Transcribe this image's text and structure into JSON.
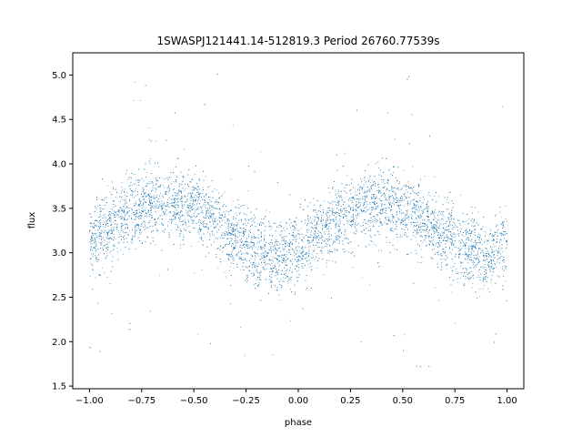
{
  "chart_data": {
    "type": "scatter",
    "title": "1SWASPJ121441.14-512819.3 Period 26760.77539s",
    "xlabel": "phase",
    "ylabel": "flux",
    "xlim": [
      -1.08,
      1.08
    ],
    "ylim": [
      1.47,
      5.25
    ],
    "xticks": [
      -1.0,
      -0.75,
      -0.5,
      -0.25,
      0.0,
      0.25,
      0.5,
      0.75,
      1.0
    ],
    "xtick_labels": [
      "−1.00",
      "−0.75",
      "−0.50",
      "−0.25",
      "0.00",
      "0.25",
      "0.50",
      "0.75",
      "1.00"
    ],
    "yticks": [
      1.5,
      2.0,
      2.5,
      3.0,
      3.5,
      4.0,
      4.5,
      5.0
    ],
    "ytick_labels": [
      "1.5",
      "2.0",
      "2.5",
      "3.0",
      "3.5",
      "4.0",
      "4.5",
      "5.0"
    ],
    "grid": false,
    "legend": "none",
    "series": [
      {
        "color": "#1f77b4",
        "marker": "point",
        "description_of_shape": "folded light curve, sinusoidal with period 1.0 in phase",
        "x": [
          -1.0,
          -0.9,
          -0.8,
          -0.7,
          -0.6,
          -0.5,
          -0.4,
          -0.3,
          -0.2,
          -0.1,
          0.0,
          0.1,
          0.2,
          0.3,
          0.4,
          0.5,
          0.6,
          0.7,
          0.8,
          0.9,
          1.0
        ],
        "y": [
          3.1,
          3.3,
          3.45,
          3.55,
          3.55,
          3.5,
          3.35,
          3.15,
          3.0,
          2.95,
          3.05,
          3.2,
          3.4,
          3.55,
          3.55,
          3.5,
          3.35,
          3.2,
          3.05,
          2.95,
          3.1
        ]
      }
    ]
  }
}
